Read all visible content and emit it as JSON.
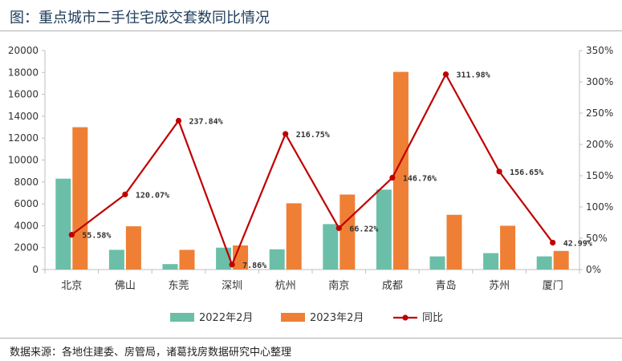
{
  "header": {
    "title": "图：重点城市二手住宅成交套数同比情况"
  },
  "footer": {
    "source": "数据来源：各地住建委、房管局，诸葛找房数据研究中心整理"
  },
  "colors": {
    "series2022": "#6bbfa8",
    "series2023": "#ef7f35",
    "yoy": "#c00000"
  },
  "chart_data": {
    "type": "bar",
    "title": "重点城市二手住宅成交套数同比情况",
    "categories": [
      "北京",
      "佛山",
      "东莞",
      "深圳",
      "杭州",
      "南京",
      "成都",
      "青岛",
      "苏州",
      "厦门"
    ],
    "series": [
      {
        "name": "2022年2月",
        "type": "bar",
        "axis": "left",
        "values": [
          8300,
          1800,
          500,
          2000,
          1850,
          4150,
          7300,
          1200,
          1500,
          1200
        ]
      },
      {
        "name": "2023年2月",
        "type": "bar",
        "axis": "left",
        "values": [
          13000,
          3950,
          1800,
          2200,
          6050,
          6850,
          18050,
          5000,
          4000,
          1700
        ]
      },
      {
        "name": "同比",
        "type": "line",
        "axis": "right",
        "values": [
          55.58,
          120.07,
          237.84,
          7.86,
          216.75,
          66.22,
          146.76,
          311.98,
          156.65,
          42.99
        ],
        "labels": [
          "55.58%",
          "120.07%",
          "237.84%",
          "7.86%",
          "216.75%",
          "66.22%",
          "146.76%",
          "311.98%",
          "156.65%",
          "42.99%"
        ]
      }
    ],
    "ylim": [
      0,
      20000
    ],
    "yticks": [
      "0",
      "2000",
      "4000",
      "6000",
      "8000",
      "10000",
      "12000",
      "14000",
      "16000",
      "18000",
      "20000"
    ],
    "y2lim": [
      0,
      350
    ],
    "y2ticks": [
      "0%",
      "50%",
      "100%",
      "150%",
      "200%",
      "250%",
      "300%",
      "350%"
    ],
    "legend": [
      "2022年2月",
      "2023年2月",
      "同比"
    ],
    "legend_position": "bottom",
    "grid": false
  }
}
